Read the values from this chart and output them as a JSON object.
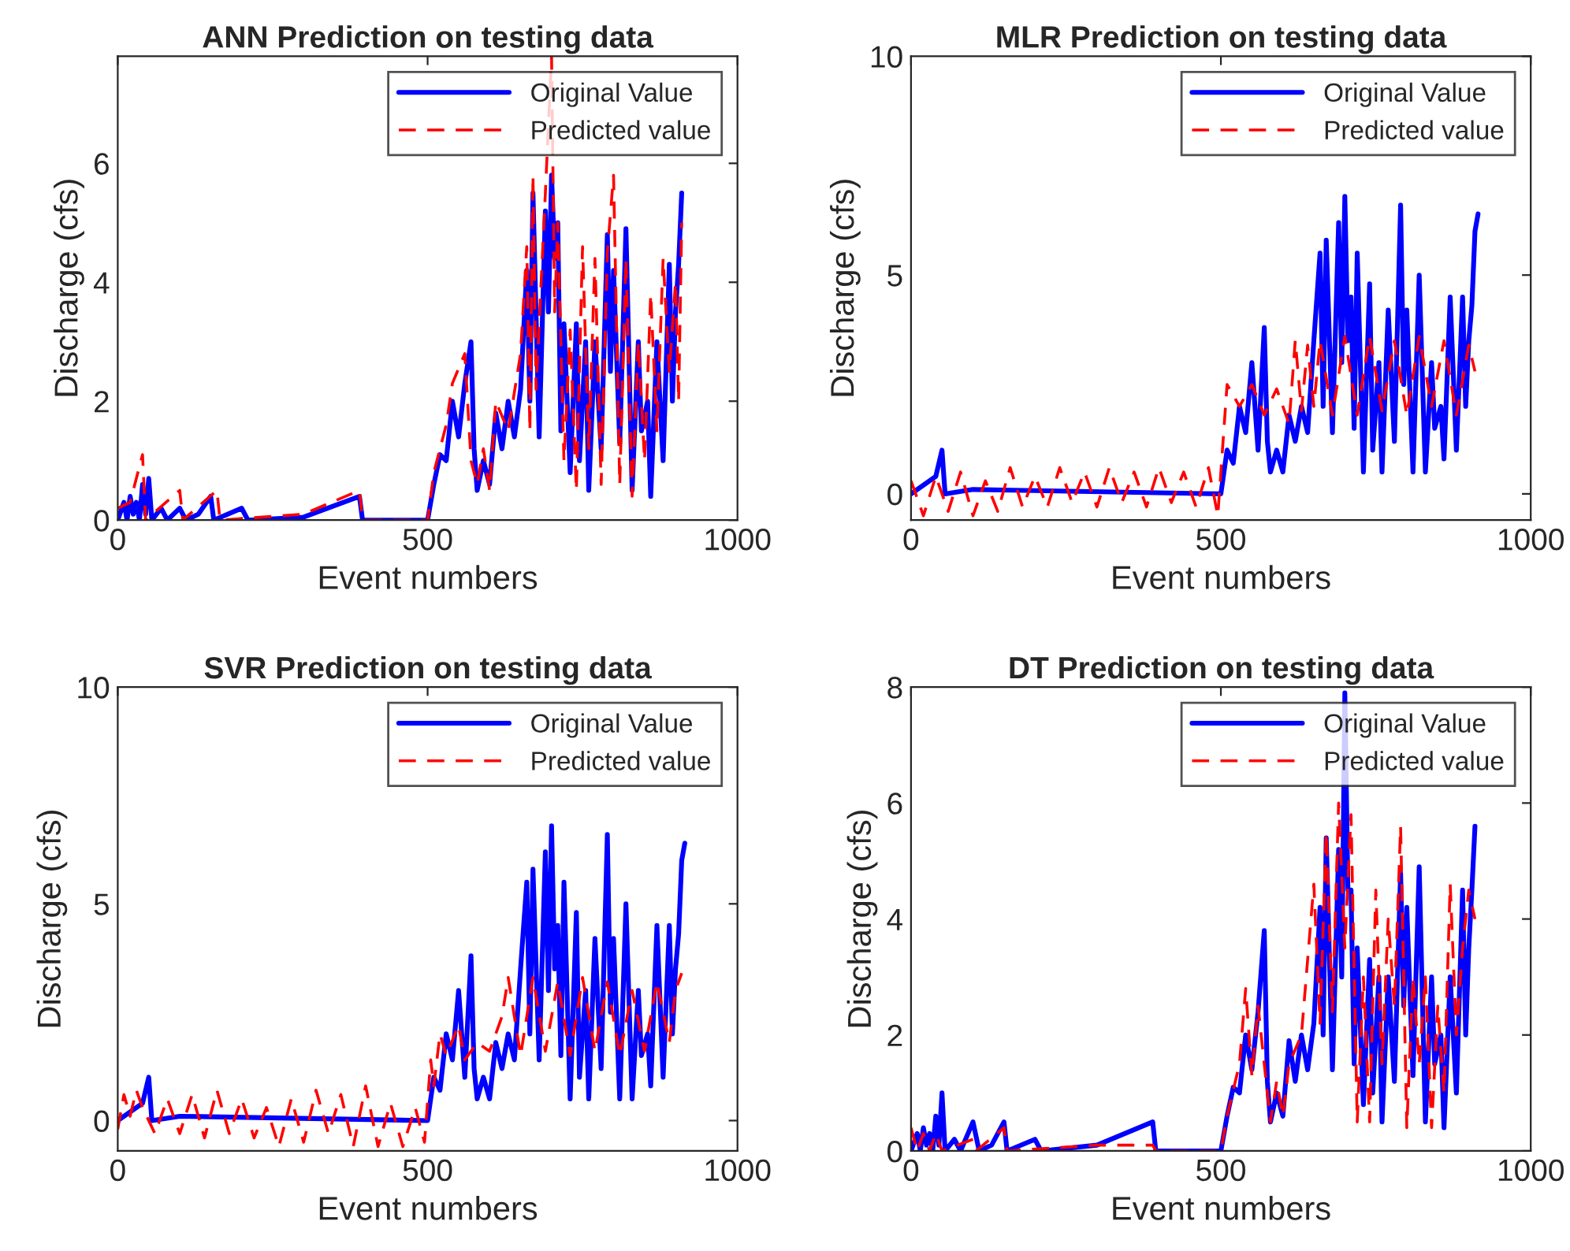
{
  "chart_data": [
    {
      "type": "line",
      "title": "ANN Prediction on testing data",
      "xlabel": "Event numbers",
      "ylabel": "Discharge (cfs)",
      "xlim": [
        0,
        1000
      ],
      "xticks": [
        0,
        500,
        1000
      ],
      "ylim": [
        0,
        7.8
      ],
      "yticks": [
        0,
        2,
        4,
        6
      ],
      "grid": false,
      "legend": "top right",
      "series": [
        {
          "name": "Original Value",
          "color": "#0000ff",
          "line_style": "solid",
          "x": [
            0,
            10,
            15,
            20,
            25,
            30,
            35,
            40,
            45,
            50,
            55,
            70,
            80,
            100,
            110,
            130,
            150,
            155,
            200,
            210,
            300,
            390,
            395,
            500,
            510,
            520,
            530,
            540,
            550,
            560,
            570,
            575,
            580,
            590,
            600,
            610,
            620,
            630,
            640,
            650,
            660,
            665,
            670,
            680,
            690,
            695,
            700,
            705,
            710,
            715,
            720,
            730,
            740,
            745,
            755,
            760,
            770,
            780,
            790,
            795,
            800,
            810,
            820,
            830,
            840,
            845,
            855,
            860,
            870,
            880,
            890,
            895,
            900,
            905,
            910
          ],
          "values": [
            0,
            0.3,
            0,
            0.4,
            0.1,
            0.3,
            0,
            0.6,
            0.1,
            0.7,
            0,
            0.2,
            0,
            0.2,
            0,
            0.1,
            0.4,
            0,
            0.2,
            0,
            0.05,
            0.4,
            0,
            0,
            0.6,
            1.1,
            1.0,
            2.0,
            1.4,
            2.3,
            3.0,
            1.2,
            0.5,
            1.0,
            0.6,
            1.8,
            1.2,
            2.0,
            1.4,
            2.2,
            4.2,
            2.0,
            5.5,
            1.4,
            5.2,
            3.5,
            5.8,
            4.4,
            5.0,
            1.5,
            3.3,
            0.8,
            3.3,
            1.0,
            3.0,
            0.5,
            3.0,
            1.2,
            4.8,
            2.5,
            4.2,
            1.3,
            4.9,
            0.5,
            3.0,
            1.5,
            2.0,
            0.4,
            3.0,
            1.0,
            4.3,
            2.0,
            3.5,
            4.3,
            5.5
          ]
        },
        {
          "name": "Predicted value",
          "color": "#ff0000",
          "line_style": "dashed",
          "x": [
            0,
            20,
            40,
            45,
            100,
            105,
            160,
            165,
            300,
            390,
            395,
            500,
            510,
            530,
            540,
            560,
            570,
            580,
            590,
            600,
            610,
            630,
            650,
            660,
            665,
            670,
            675,
            690,
            700,
            705,
            710,
            720,
            730,
            740,
            750,
            760,
            770,
            780,
            790,
            800,
            810,
            820,
            830,
            840,
            850,
            860,
            870,
            880,
            890,
            900,
            905,
            910
          ],
          "values": [
            0.2,
            0.3,
            1.1,
            0,
            0.5,
            0,
            0.5,
            0,
            0.1,
            0.5,
            0,
            0,
            0.8,
            1.6,
            2.3,
            2.8,
            1.0,
            0.6,
            1.2,
            0.5,
            2.0,
            1.5,
            2.8,
            4.6,
            1.5,
            5.8,
            2.2,
            5.5,
            7.8,
            3.5,
            5.0,
            1.0,
            3.2,
            0.5,
            4.6,
            1.2,
            4.4,
            0.6,
            4.5,
            5.8,
            0.6,
            4.4,
            0.4,
            3.0,
            1.0,
            3.8,
            1.5,
            4.4,
            2.5,
            4.0,
            2.0,
            5.0
          ]
        }
      ]
    },
    {
      "type": "line",
      "title": "MLR Prediction on testing data",
      "xlabel": "Event numbers",
      "ylabel": "Discharge (cfs)",
      "xlim": [
        0,
        1000
      ],
      "xticks": [
        0,
        500,
        1000
      ],
      "ylim": [
        -0.6,
        10
      ],
      "yticks": [
        0,
        5,
        10
      ],
      "grid": false,
      "legend": "top right",
      "series": [
        {
          "name": "Original Value",
          "color": "#0000ff",
          "line_style": "solid",
          "x": [
            0,
            40,
            50,
            55,
            100,
            500,
            510,
            520,
            530,
            540,
            550,
            560,
            570,
            575,
            580,
            590,
            600,
            610,
            620,
            630,
            640,
            650,
            660,
            665,
            670,
            680,
            690,
            695,
            700,
            705,
            710,
            715,
            720,
            730,
            740,
            745,
            755,
            760,
            770,
            780,
            790,
            795,
            800,
            810,
            820,
            830,
            840,
            845,
            855,
            860,
            870,
            880,
            890,
            895,
            900,
            905,
            910,
            915
          ],
          "values": [
            0,
            0.4,
            1.0,
            0,
            0.1,
            0,
            1.0,
            0.7,
            2.0,
            1.4,
            3.0,
            1.0,
            3.8,
            1.2,
            0.5,
            1.0,
            0.5,
            1.8,
            1.2,
            2.0,
            1.4,
            3.5,
            5.5,
            2.0,
            5.8,
            1.4,
            6.2,
            3.0,
            6.8,
            3.5,
            4.5,
            1.5,
            5.5,
            0.5,
            4.8,
            1.0,
            3.0,
            0.5,
            4.2,
            1.2,
            6.6,
            2.5,
            4.2,
            0.5,
            5.0,
            0.5,
            3.0,
            1.5,
            2.0,
            0.8,
            4.5,
            1.0,
            4.5,
            2.0,
            3.5,
            4.3,
            6.0,
            6.4
          ]
        },
        {
          "name": "Predicted value",
          "color": "#ff0000",
          "line_style": "dashed",
          "x": [
            0,
            20,
            40,
            60,
            80,
            100,
            120,
            140,
            160,
            180,
            200,
            220,
            240,
            260,
            280,
            300,
            320,
            340,
            360,
            380,
            400,
            420,
            440,
            460,
            480,
            495,
            505,
            510,
            530,
            550,
            570,
            590,
            610,
            620,
            630,
            640,
            650,
            660,
            680,
            700,
            720,
            740,
            760,
            780,
            800,
            820,
            840,
            860,
            880,
            900,
            910
          ],
          "values": [
            0.3,
            -0.5,
            0.4,
            -0.4,
            0.5,
            -0.5,
            0.3,
            -0.4,
            0.6,
            -0.3,
            0.4,
            -0.3,
            0.6,
            -0.2,
            0.5,
            -0.3,
            0.6,
            -0.2,
            0.5,
            -0.3,
            0.6,
            -0.2,
            0.5,
            -0.3,
            0.6,
            -0.5,
            1.5,
            2.5,
            2.0,
            2.5,
            1.8,
            2.4,
            1.6,
            3.5,
            1.9,
            3.4,
            2.0,
            3.5,
            1.8,
            3.6,
            1.8,
            3.6,
            1.9,
            3.5,
            1.8,
            3.6,
            2.0,
            3.5,
            1.8,
            3.4,
            2.8
          ]
        }
      ]
    },
    {
      "type": "line",
      "title": "SVR Prediction on testing data",
      "xlabel": "Event numbers",
      "ylabel": "Discharge (cfs)",
      "xlim": [
        0,
        1000
      ],
      "xticks": [
        0,
        500,
        1000
      ],
      "ylim": [
        -0.7,
        10
      ],
      "yticks": [
        0,
        5,
        10
      ],
      "grid": false,
      "legend": "top right",
      "series": [
        {
          "name": "Original Value",
          "color": "#0000ff",
          "line_style": "solid",
          "x": [
            0,
            40,
            50,
            55,
            100,
            500,
            510,
            520,
            530,
            540,
            550,
            560,
            570,
            575,
            580,
            590,
            600,
            610,
            620,
            630,
            640,
            650,
            660,
            665,
            670,
            680,
            690,
            695,
            700,
            705,
            710,
            715,
            720,
            730,
            740,
            745,
            755,
            760,
            770,
            780,
            790,
            795,
            800,
            810,
            820,
            830,
            840,
            845,
            855,
            860,
            870,
            880,
            890,
            895,
            900,
            905,
            910,
            915
          ],
          "values": [
            0,
            0.4,
            1.0,
            0,
            0.1,
            0,
            1.0,
            0.7,
            2.0,
            1.4,
            3.0,
            1.0,
            3.8,
            1.2,
            0.5,
            1.0,
            0.5,
            1.8,
            1.2,
            2.0,
            1.4,
            3.5,
            5.5,
            2.0,
            5.8,
            1.4,
            6.2,
            3.0,
            6.8,
            3.5,
            4.5,
            1.5,
            5.5,
            0.5,
            4.8,
            1.0,
            3.0,
            0.5,
            4.2,
            1.2,
            6.6,
            2.5,
            4.2,
            0.5,
            5.0,
            0.5,
            3.0,
            1.5,
            2.0,
            0.8,
            4.5,
            1.0,
            4.5,
            2.0,
            3.5,
            4.3,
            6.0,
            6.4
          ]
        },
        {
          "name": "Predicted value",
          "color": "#ff0000",
          "line_style": "dashed",
          "x": [
            0,
            10,
            20,
            30,
            40,
            60,
            80,
            100,
            120,
            140,
            160,
            180,
            200,
            220,
            240,
            260,
            280,
            300,
            320,
            340,
            360,
            380,
            400,
            420,
            440,
            460,
            480,
            495,
            505,
            510,
            520,
            530,
            550,
            560,
            580,
            600,
            620,
            630,
            650,
            670,
            690,
            710,
            730,
            750,
            770,
            790,
            810,
            830,
            850,
            870,
            890,
            900,
            910
          ],
          "values": [
            -0.2,
            0.6,
            0.1,
            0.7,
            0.3,
            -0.3,
            0.5,
            -0.3,
            0.6,
            -0.4,
            0.7,
            -0.3,
            0.5,
            -0.4,
            0.3,
            -0.6,
            0.5,
            -0.5,
            0.7,
            -0.3,
            0.6,
            -0.6,
            0.8,
            -0.6,
            0.4,
            -0.6,
            0.3,
            -0.5,
            1.4,
            0.8,
            2.0,
            1.5,
            2.2,
            1.4,
            1.8,
            1.6,
            2.4,
            3.3,
            1.5,
            3.3,
            1.6,
            3.2,
            1.5,
            3.3,
            1.6,
            3.2,
            1.5,
            3.0,
            1.6,
            3.2,
            1.8,
            3.0,
            3.4
          ]
        }
      ]
    },
    {
      "type": "line",
      "title": "DT Prediction on testing data",
      "xlabel": "Event numbers",
      "ylabel": "Discharge (cfs)",
      "xlim": [
        0,
        1000
      ],
      "xticks": [
        0,
        500,
        1000
      ],
      "ylim": [
        0,
        8
      ],
      "yticks": [
        0,
        2,
        4,
        6,
        8
      ],
      "grid": false,
      "legend": "top right",
      "series": [
        {
          "name": "Original Value",
          "color": "#0000ff",
          "line_style": "solid",
          "x": [
            0,
            10,
            15,
            20,
            25,
            30,
            35,
            40,
            45,
            50,
            55,
            70,
            80,
            100,
            110,
            130,
            150,
            155,
            200,
            210,
            300,
            390,
            395,
            500,
            510,
            520,
            530,
            540,
            550,
            560,
            570,
            575,
            580,
            590,
            600,
            610,
            620,
            630,
            640,
            650,
            660,
            665,
            670,
            680,
            690,
            695,
            700,
            705,
            710,
            715,
            720,
            730,
            740,
            745,
            755,
            760,
            770,
            780,
            790,
            795,
            800,
            810,
            820,
            830,
            840,
            845,
            855,
            860,
            870,
            880,
            890,
            895,
            900,
            905,
            910
          ],
          "values": [
            0,
            0.3,
            0,
            0.4,
            0.1,
            0.3,
            0,
            0.6,
            0.1,
            1.0,
            0,
            0.2,
            0,
            0.5,
            0,
            0.1,
            0.5,
            0,
            0.2,
            0,
            0.1,
            0.5,
            0,
            0,
            0.6,
            1.1,
            1.0,
            2.0,
            1.4,
            2.4,
            3.8,
            1.2,
            0.5,
            1.0,
            0.6,
            1.9,
            1.2,
            2.0,
            1.4,
            2.2,
            4.2,
            2.0,
            5.4,
            1.4,
            5.2,
            3.0,
            7.9,
            4.5,
            4.5,
            1.5,
            3.5,
            0.8,
            3.3,
            1.0,
            3.0,
            0.5,
            3.0,
            1.2,
            4.8,
            2.5,
            4.2,
            1.3,
            4.9,
            0.5,
            3.0,
            1.5,
            2.0,
            0.4,
            3.0,
            1.0,
            4.5,
            2.0,
            3.5,
            4.5,
            5.6
          ]
        },
        {
          "name": "Predicted value",
          "color": "#ff0000",
          "line_style": "dashed",
          "x": [
            0,
            10,
            20,
            30,
            40,
            50,
            100,
            105,
            150,
            155,
            300,
            390,
            395,
            500,
            510,
            530,
            540,
            550,
            560,
            580,
            590,
            600,
            610,
            630,
            650,
            660,
            670,
            680,
            690,
            700,
            710,
            720,
            730,
            740,
            750,
            760,
            770,
            780,
            790,
            800,
            810,
            820,
            830,
            840,
            850,
            860,
            870,
            880,
            890,
            900,
            910
          ],
          "values": [
            0.4,
            0,
            0.3,
            0,
            0.3,
            0,
            0.2,
            0,
            0.4,
            0,
            0.1,
            0.1,
            0,
            0,
            0.6,
            1.5,
            2.8,
            1.3,
            2.5,
            0.5,
            1.2,
            0.6,
            1.5,
            2.0,
            4.6,
            2.2,
            5.5,
            2.4,
            6.0,
            3.5,
            5.8,
            0.5,
            3.0,
            0.5,
            4.5,
            1.5,
            4.0,
            2.5,
            5.6,
            0.4,
            3.0,
            1.5,
            3.0,
            0.4,
            2.5,
            1.0,
            4.6,
            2.0,
            3.5,
            4.5,
            4.0
          ]
        }
      ]
    }
  ]
}
